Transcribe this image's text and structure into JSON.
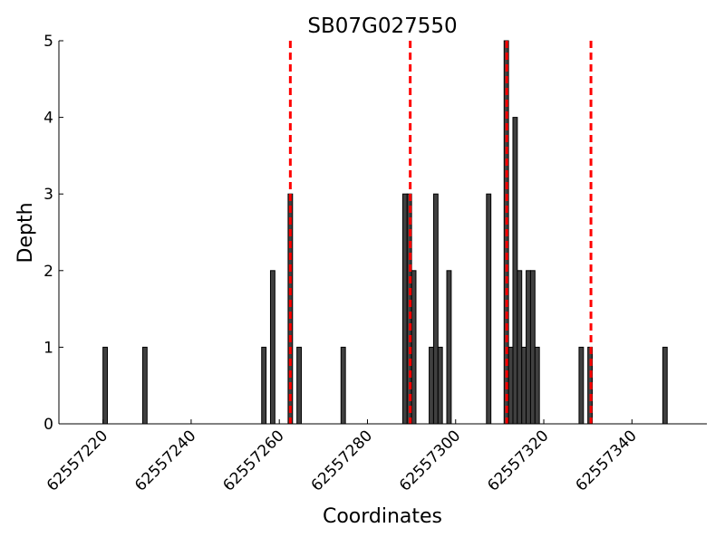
{
  "chart_data": {
    "type": "bar",
    "title": "SB07G027550",
    "xlabel": "Coordinates",
    "ylabel": "Depth",
    "x": [
      62557220,
      62557229,
      62557256,
      62557258,
      62557262,
      62557264,
      62557274,
      62557288,
      62557289,
      62557290,
      62557294,
      62557295,
      62557296,
      62557298,
      62557307,
      62557311,
      62557312,
      62557313,
      62557314,
      62557315,
      62557316,
      62557317,
      62557318,
      62557328,
      62557330,
      62557347
    ],
    "values": [
      1,
      1,
      1,
      2,
      3,
      1,
      1,
      3,
      3,
      2,
      1,
      3,
      1,
      2,
      3,
      5,
      1,
      4,
      2,
      1,
      2,
      2,
      1,
      1,
      1,
      1
    ],
    "color": "#404040",
    "edgecolor": "#000000",
    "vlines": [
      62557262.5,
      62557289.7,
      62557311.6,
      62557330.7
    ],
    "vline_color": "#ff0000",
    "xlim": [
      62557210,
      62557357
    ],
    "xticks": [
      62557220,
      62557240,
      62557260,
      62557280,
      62557300,
      62557320,
      62557340
    ],
    "ylim": [
      0,
      5
    ],
    "yticks": [
      0,
      1,
      2,
      3,
      4,
      5
    ],
    "grid": false
  }
}
